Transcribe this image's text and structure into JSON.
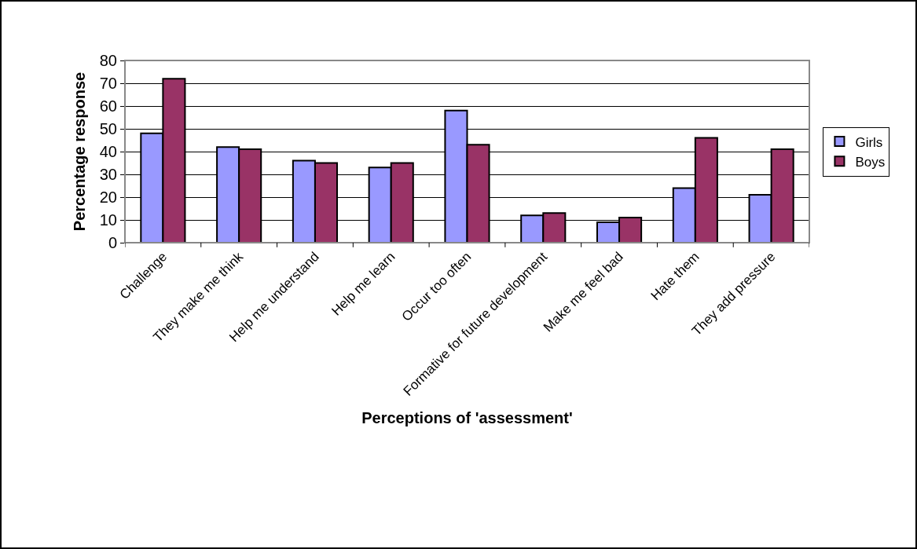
{
  "chart_data": {
    "type": "bar",
    "xlabel": "Perceptions of 'assessment'",
    "ylabel": "Percentage response",
    "categories": [
      "Challenge",
      "They make me think",
      "Help me understand",
      "Help me learn",
      "Occur too often",
      "Formative for future development",
      "Make me feel bad",
      "Hate them",
      "They add pressure"
    ],
    "series": [
      {
        "name": "Girls",
        "color": "#9999ff",
        "values": [
          48,
          42,
          36,
          33,
          58,
          12,
          9,
          24,
          21
        ]
      },
      {
        "name": "Boys",
        "color": "#993366",
        "values": [
          72,
          41,
          35,
          35,
          43,
          13,
          11,
          46,
          41
        ]
      }
    ],
    "ylim": [
      0,
      80
    ],
    "yticks": [
      0,
      10,
      20,
      30,
      40,
      50,
      60,
      70,
      80
    ],
    "grid": "y",
    "legend": "right"
  }
}
